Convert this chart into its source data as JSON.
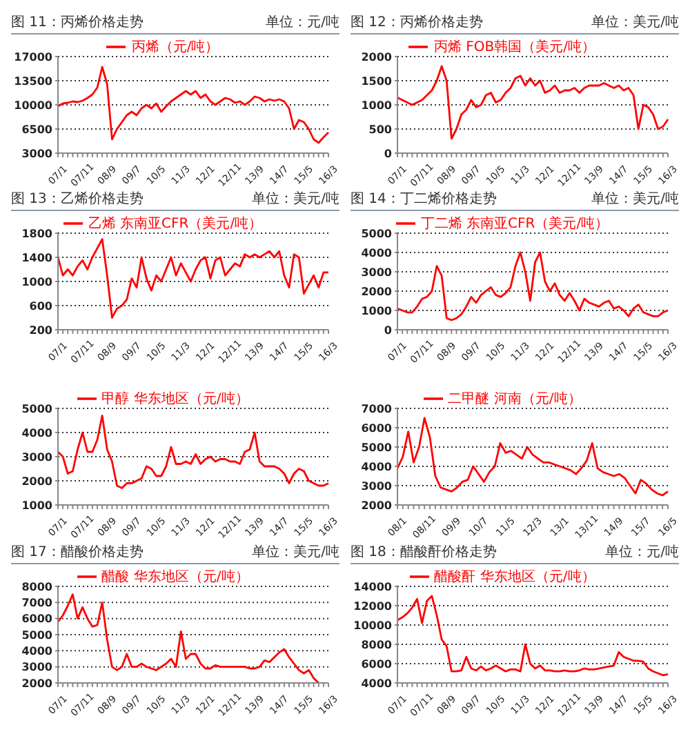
{
  "chart_data": [
    {
      "type": "line",
      "title": "图 11：丙烯价格走势",
      "annotations": [
        "单位：元/吨"
      ],
      "categories": [
        "07/1",
        null,
        null,
        null,
        null,
        "07/11",
        null,
        null,
        null,
        null,
        "08/9",
        null,
        null,
        null,
        null,
        "09/7",
        null,
        null,
        null,
        null,
        "10/5",
        null,
        null,
        null,
        null,
        "11/3",
        null,
        null,
        null,
        null,
        "12/1",
        null,
        null,
        null,
        null,
        "12/11",
        null,
        null,
        null,
        null,
        "13/9",
        null,
        null,
        null,
        null,
        "14/7",
        null,
        null,
        null,
        null,
        "15/5",
        null,
        null,
        null,
        null,
        "16/3"
      ],
      "series": [
        {
          "name": "丙烯（元/吨）",
          "color": "#ff0000",
          "values": [
            9800,
            10200,
            10300,
            10500,
            10400,
            10600,
            11000,
            11500,
            12500,
            15500,
            13000,
            5000,
            6500,
            7500,
            8500,
            9000,
            8500,
            9500,
            10000,
            9500,
            10200,
            9000,
            9800,
            10500,
            11000,
            11500,
            12000,
            11500,
            12000,
            11000,
            11500,
            10500,
            10000,
            10500,
            11000,
            10800,
            10300,
            10500,
            10000,
            10500,
            11200,
            11000,
            10500,
            10800,
            10600,
            10800,
            10500,
            9500,
            6500,
            7800,
            7500,
            6500,
            5000,
            4500,
            5300,
            6000
          ]
        }
      ],
      "ylim": [
        3000,
        17000
      ],
      "yticks": [
        3000,
        6500,
        10000,
        13500,
        17000
      ],
      "grid": "y",
      "legend": "top"
    },
    {
      "type": "line",
      "title": "图 12：丙烯价格走势",
      "annotations": [
        "单位：美元/吨"
      ],
      "categories": [
        "07/1",
        null,
        null,
        null,
        null,
        "07/11",
        null,
        null,
        null,
        null,
        "08/9",
        null,
        null,
        null,
        null,
        "09/7",
        null,
        null,
        null,
        null,
        "10/5",
        null,
        null,
        null,
        null,
        "11/3",
        null,
        null,
        null,
        null,
        "12/1",
        null,
        null,
        null,
        null,
        "12/11",
        null,
        null,
        null,
        null,
        "13/9",
        null,
        null,
        null,
        null,
        "14/7",
        null,
        null,
        null,
        null,
        "15/5",
        null,
        null,
        null,
        null,
        "16/3"
      ],
      "series": [
        {
          "name": "丙烯 FOB韩国（美元/吨）",
          "color": "#ff0000",
          "values": [
            1150,
            1100,
            1050,
            1000,
            1050,
            1100,
            1200,
            1300,
            1500,
            1800,
            1500,
            300,
            500,
            800,
            900,
            1100,
            950,
            1000,
            1200,
            1250,
            1050,
            1100,
            1250,
            1350,
            1550,
            1600,
            1400,
            1550,
            1400,
            1500,
            1250,
            1300,
            1400,
            1250,
            1300,
            1300,
            1350,
            1250,
            1350,
            1400,
            1400,
            1400,
            1450,
            1400,
            1350,
            1400,
            1300,
            1350,
            1200,
            500,
            1000,
            950,
            800,
            500,
            550,
            700
          ]
        }
      ],
      "ylim": [
        0,
        2000
      ],
      "yticks": [
        0,
        500,
        1000,
        1500,
        2000
      ],
      "grid": "y",
      "legend": "top"
    },
    {
      "type": "line",
      "title": "图 13：乙烯价格走势",
      "annotations": [
        "单位：美元/吨"
      ],
      "categories": [
        "07/1",
        null,
        null,
        null,
        null,
        "07/11",
        null,
        null,
        null,
        null,
        "08/9",
        null,
        null,
        null,
        null,
        "09/7",
        null,
        null,
        null,
        null,
        "10/5",
        null,
        null,
        null,
        null,
        "11/3",
        null,
        null,
        null,
        null,
        "12/1",
        null,
        null,
        null,
        null,
        "12/11",
        null,
        null,
        null,
        null,
        "13/9",
        null,
        null,
        null,
        null,
        "14/7",
        null,
        null,
        null,
        null,
        "15/5",
        null,
        null,
        null,
        null,
        "16/3"
      ],
      "series": [
        {
          "name": "乙烯 东南亚CFR（美元/吨）",
          "color": "#ff0000",
          "values": [
            1400,
            1100,
            1200,
            1100,
            1250,
            1350,
            1200,
            1400,
            1550,
            1700,
            1100,
            400,
            550,
            600,
            700,
            1050,
            900,
            1400,
            1050,
            850,
            1100,
            1000,
            1200,
            1400,
            1100,
            1300,
            1150,
            1000,
            1200,
            1350,
            1400,
            1050,
            1350,
            1400,
            1100,
            1200,
            1300,
            1250,
            1450,
            1400,
            1450,
            1400,
            1450,
            1500,
            1400,
            1500,
            1100,
            900,
            1450,
            1400,
            800,
            950,
            1100,
            900,
            1150,
            1150
          ]
        }
      ],
      "ylim": [
        200,
        1800
      ],
      "yticks": [
        200,
        600,
        1000,
        1400,
        1800
      ],
      "grid": "y",
      "legend": "top"
    },
    {
      "type": "line",
      "title": "图 14：丁二烯价格走势",
      "annotations": [
        "单位：美元/吨"
      ],
      "categories": [
        "07/1",
        null,
        null,
        null,
        null,
        "07/11",
        null,
        null,
        null,
        null,
        "08/9",
        null,
        null,
        null,
        null,
        "09/7",
        null,
        null,
        null,
        null,
        "10/5",
        null,
        null,
        null,
        null,
        "11/3",
        null,
        null,
        null,
        null,
        "12/1",
        null,
        null,
        null,
        null,
        "12/11",
        null,
        null,
        null,
        null,
        "13/9",
        null,
        null,
        null,
        null,
        "14/7",
        null,
        null,
        null,
        null,
        "15/5",
        null,
        null,
        null,
        null,
        "16/3"
      ],
      "series": [
        {
          "name": "丁二烯 东南亚CFR（美元/吨）",
          "color": "#ff0000",
          "values": [
            1100,
            1000,
            900,
            900,
            1200,
            1600,
            1700,
            2000,
            3300,
            2800,
            600,
            500,
            600,
            800,
            1200,
            1700,
            1400,
            1800,
            2000,
            2200,
            1800,
            1700,
            1900,
            2200,
            3300,
            4000,
            3000,
            1500,
            3500,
            4000,
            2500,
            2000,
            2400,
            1800,
            1500,
            1900,
            1500,
            1000,
            1600,
            1400,
            1300,
            1200,
            1400,
            1500,
            1100,
            1200,
            1000,
            700,
            1100,
            1300,
            900,
            800,
            700,
            700,
            900,
            1000
          ]
        }
      ],
      "ylim": [
        0,
        5000
      ],
      "yticks": [
        0,
        1000,
        2000,
        3000,
        4000,
        5000
      ],
      "grid": "y",
      "legend": "top"
    },
    {
      "type": "line",
      "categories": [
        "07/1",
        null,
        null,
        null,
        null,
        "07/11",
        null,
        null,
        null,
        null,
        "08/9",
        null,
        null,
        null,
        null,
        "09/7",
        null,
        null,
        null,
        null,
        "10/5",
        null,
        null,
        null,
        null,
        "11/3",
        null,
        null,
        null,
        null,
        "12/1",
        null,
        null,
        null,
        null,
        "12/11",
        null,
        null,
        null,
        null,
        "13/9",
        null,
        null,
        null,
        null,
        "14/7",
        null,
        null,
        null,
        null,
        "15/5",
        null,
        null,
        null,
        null,
        "16/3"
      ],
      "series": [
        {
          "name": "甲醇 华东地区（元/吨）",
          "color": "#ff0000",
          "values": [
            3200,
            3000,
            2300,
            2400,
            3300,
            4000,
            3200,
            3200,
            3700,
            4700,
            3300,
            2800,
            1800,
            1700,
            1900,
            1900,
            2000,
            2100,
            2600,
            2500,
            2200,
            2200,
            2600,
            3400,
            2700,
            2700,
            2800,
            2700,
            3100,
            2700,
            2900,
            3000,
            2800,
            2900,
            2900,
            2800,
            2800,
            2700,
            3200,
            3300,
            4000,
            2800,
            2600,
            2600,
            2600,
            2500,
            2300,
            1900,
            2300,
            2500,
            2400,
            2000,
            1900,
            1800,
            1800,
            1900
          ]
        }
      ],
      "ylim": [
        1000,
        5000
      ],
      "yticks": [
        1000,
        2000,
        3000,
        4000,
        5000
      ],
      "grid": "y",
      "legend": "top"
    },
    {
      "type": "line",
      "categories": [
        "08/1",
        null,
        null,
        null,
        null,
        "08/11",
        null,
        null,
        null,
        null,
        "09/9",
        null,
        null,
        null,
        null,
        "10/7",
        null,
        null,
        null,
        null,
        "11/5",
        null,
        null,
        null,
        null,
        "12/3",
        null,
        null,
        null,
        null,
        "13/1",
        null,
        null,
        null,
        null,
        "13/11",
        null,
        null,
        null,
        null,
        "14/9",
        null,
        null,
        null,
        null,
        "15/7",
        null,
        null,
        null,
        null,
        "16/5"
      ],
      "series": [
        {
          "name": "二甲醚 河南（元/吨）",
          "color": "#ff0000",
          "values": [
            3900,
            4500,
            5800,
            4200,
            5000,
            6500,
            5500,
            3500,
            2900,
            2800,
            2700,
            2900,
            3200,
            3300,
            4000,
            3600,
            3200,
            3700,
            4000,
            5200,
            4700,
            4800,
            4600,
            4400,
            5000,
            4600,
            4400,
            4200,
            4200,
            4100,
            4000,
            3900,
            3800,
            3600,
            3900,
            4300,
            5200,
            3900,
            3700,
            3600,
            3500,
            3600,
            3400,
            3000,
            2600,
            3300,
            3100,
            2800,
            2600,
            2500,
            2700
          ]
        }
      ],
      "ylim": [
        2000,
        7000
      ],
      "yticks": [
        2000,
        3000,
        4000,
        5000,
        6000,
        7000
      ],
      "grid": "y",
      "legend": "top"
    },
    {
      "type": "line",
      "title": "图 17：醋酸价格走势",
      "annotations": [
        "单位：美元/吨"
      ],
      "categories": [
        "07/1",
        null,
        null,
        null,
        null,
        "07/11",
        null,
        null,
        null,
        null,
        "08/9",
        null,
        null,
        null,
        null,
        "09/7",
        null,
        null,
        null,
        null,
        "10/5",
        null,
        null,
        null,
        null,
        "11/3",
        null,
        null,
        null,
        null,
        "12/1",
        null,
        null,
        null,
        null,
        "12/11",
        null,
        null,
        null,
        null,
        "13/9",
        null,
        null,
        null,
        null,
        "14/7",
        null,
        null,
        null,
        null,
        "15/5",
        null,
        null,
        null,
        null,
        "16/3"
      ],
      "series": [
        {
          "name": "醋酸 华东地区（元/吨）",
          "color": "#ff0000",
          "values": [
            5800,
            6200,
            6800,
            7500,
            6000,
            6700,
            6000,
            5500,
            5600,
            7000,
            4700,
            3000,
            2800,
            3000,
            3800,
            3000,
            3000,
            3200,
            3000,
            2900,
            2800,
            3000,
            3200,
            3500,
            3000,
            5200,
            3500,
            3800,
            3800,
            3200,
            2900,
            2900,
            3100,
            3000,
            3000,
            3000,
            3000,
            3000,
            3000,
            2900,
            2900,
            3000,
            3400,
            3300,
            3600,
            3900,
            4100,
            3600,
            3200,
            2800,
            2600,
            2800,
            2300,
            2000,
            null,
            null
          ]
        }
      ],
      "ylim": [
        2000,
        8000
      ],
      "yticks": [
        2000,
        3000,
        4000,
        5000,
        6000,
        7000,
        8000
      ],
      "grid": "y",
      "legend": "top"
    },
    {
      "type": "line",
      "title": "图 18：醋酸酐价格走势",
      "annotations": [
        "单位：元/吨"
      ],
      "categories": [
        "07/1",
        null,
        null,
        null,
        null,
        "07/11",
        null,
        null,
        null,
        null,
        "08/9",
        null,
        null,
        null,
        null,
        "09/7",
        null,
        null,
        null,
        null,
        "10/5",
        null,
        null,
        null,
        null,
        "11/3",
        null,
        null,
        null,
        null,
        "12/1",
        null,
        null,
        null,
        null,
        "12/11",
        null,
        null,
        null,
        null,
        "13/9",
        null,
        null,
        null,
        null,
        "14/7",
        null,
        null,
        null,
        null,
        "15/5",
        null,
        null,
        null,
        null,
        "16/3"
      ],
      "series": [
        {
          "name": "醋酸酐 华东地区（元/吨）",
          "color": "#ff0000",
          "values": [
            10500,
            10800,
            11200,
            11800,
            12700,
            10200,
            12500,
            13000,
            11000,
            8500,
            7800,
            5200,
            5200,
            5300,
            6700,
            5500,
            5300,
            5700,
            5300,
            5500,
            5800,
            5500,
            5200,
            5400,
            5400,
            5200,
            8000,
            6000,
            5500,
            5800,
            5300,
            5300,
            5200,
            5200,
            5300,
            5200,
            5200,
            5300,
            5500,
            5400,
            5400,
            5500,
            5600,
            5700,
            5800,
            7200,
            6700,
            6500,
            6300,
            6300,
            6200,
            5500,
            5200,
            5000,
            4800,
            4900
          ]
        }
      ],
      "ylim": [
        4000,
        14000
      ],
      "yticks": [
        4000,
        6000,
        8000,
        10000,
        12000,
        14000
      ],
      "grid": "y",
      "legend": "top"
    }
  ]
}
